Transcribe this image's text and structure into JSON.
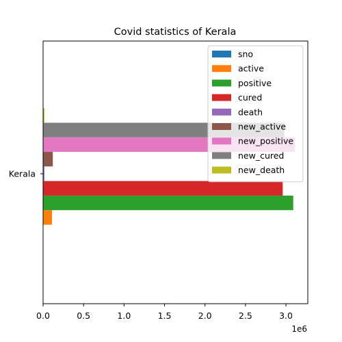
{
  "chart_data": {
    "type": "bar",
    "orientation": "horizontal",
    "title": "Covid statistics of Kerala",
    "xlabel": "",
    "ylabel": "",
    "categories": [
      "Kerala"
    ],
    "x_ticks": [
      0,
      0.5,
      1.0,
      1.5,
      2.0,
      2.5,
      3.0
    ],
    "x_tick_labels": [
      "0.0",
      "0.5",
      "1.0",
      "1.5",
      "2.0",
      "2.5",
      "3.0"
    ],
    "x_scale_label": "1e6",
    "xlim": [
      0,
      3.27
    ],
    "grid": false,
    "legend_position": "top-right",
    "series": [
      {
        "name": "sno",
        "values": [
          0
        ],
        "color": "#1f77b4"
      },
      {
        "name": "active",
        "values": [
          0.11
        ],
        "color": "#ff7f0e"
      },
      {
        "name": "positive",
        "values": [
          3.09
        ],
        "color": "#2ca02c"
      },
      {
        "name": "cured",
        "values": [
          2.96
        ],
        "color": "#d62728"
      },
      {
        "name": "death",
        "values": [
          0.016
        ],
        "color": "#9467bd"
      },
      {
        "name": "new_active",
        "values": [
          0.12
        ],
        "color": "#8c564b"
      },
      {
        "name": "new_positive",
        "values": [
          3.11
        ],
        "color": "#e377c2"
      },
      {
        "name": "new_cured",
        "values": [
          2.98
        ],
        "color": "#7f7f7f"
      },
      {
        "name": "new_death",
        "values": [
          0.016
        ],
        "color": "#bcbd22"
      }
    ]
  }
}
